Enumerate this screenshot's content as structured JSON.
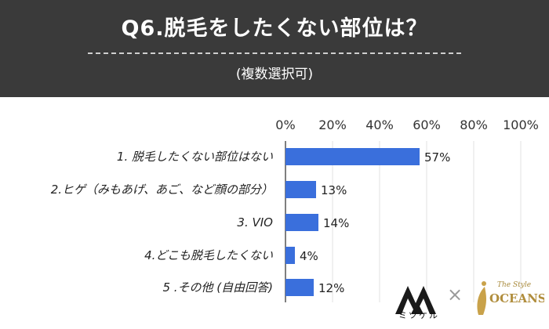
{
  "header": {
    "title": "Q6.脱毛をしたくない部位は？",
    "subtitle": "(複数選択可)"
  },
  "chart_data": {
    "type": "bar",
    "orientation": "horizontal",
    "categories": [
      "1. 脱毛したくない部位はない",
      "2.ヒゲ（みもあげ、あご、など顔の部分）",
      "3. VIO",
      "4.どこも脱毛したくない",
      "5 .その他 (自由回答)"
    ],
    "values": [
      57,
      13,
      14,
      4,
      12
    ],
    "value_labels": [
      "57%",
      "13%",
      "14%",
      "4%",
      "12%"
    ],
    "xlim": [
      0,
      100
    ],
    "x_ticks": [
      "0%",
      "20%",
      "40%",
      "60%",
      "80%",
      "100%"
    ],
    "grid": true,
    "bar_color": "#3a6fdc"
  },
  "logos": {
    "mitsukeru_text": "ミツケル",
    "separator": "×",
    "oceans_text": "OCEANS",
    "oceans_script": "The Style"
  }
}
